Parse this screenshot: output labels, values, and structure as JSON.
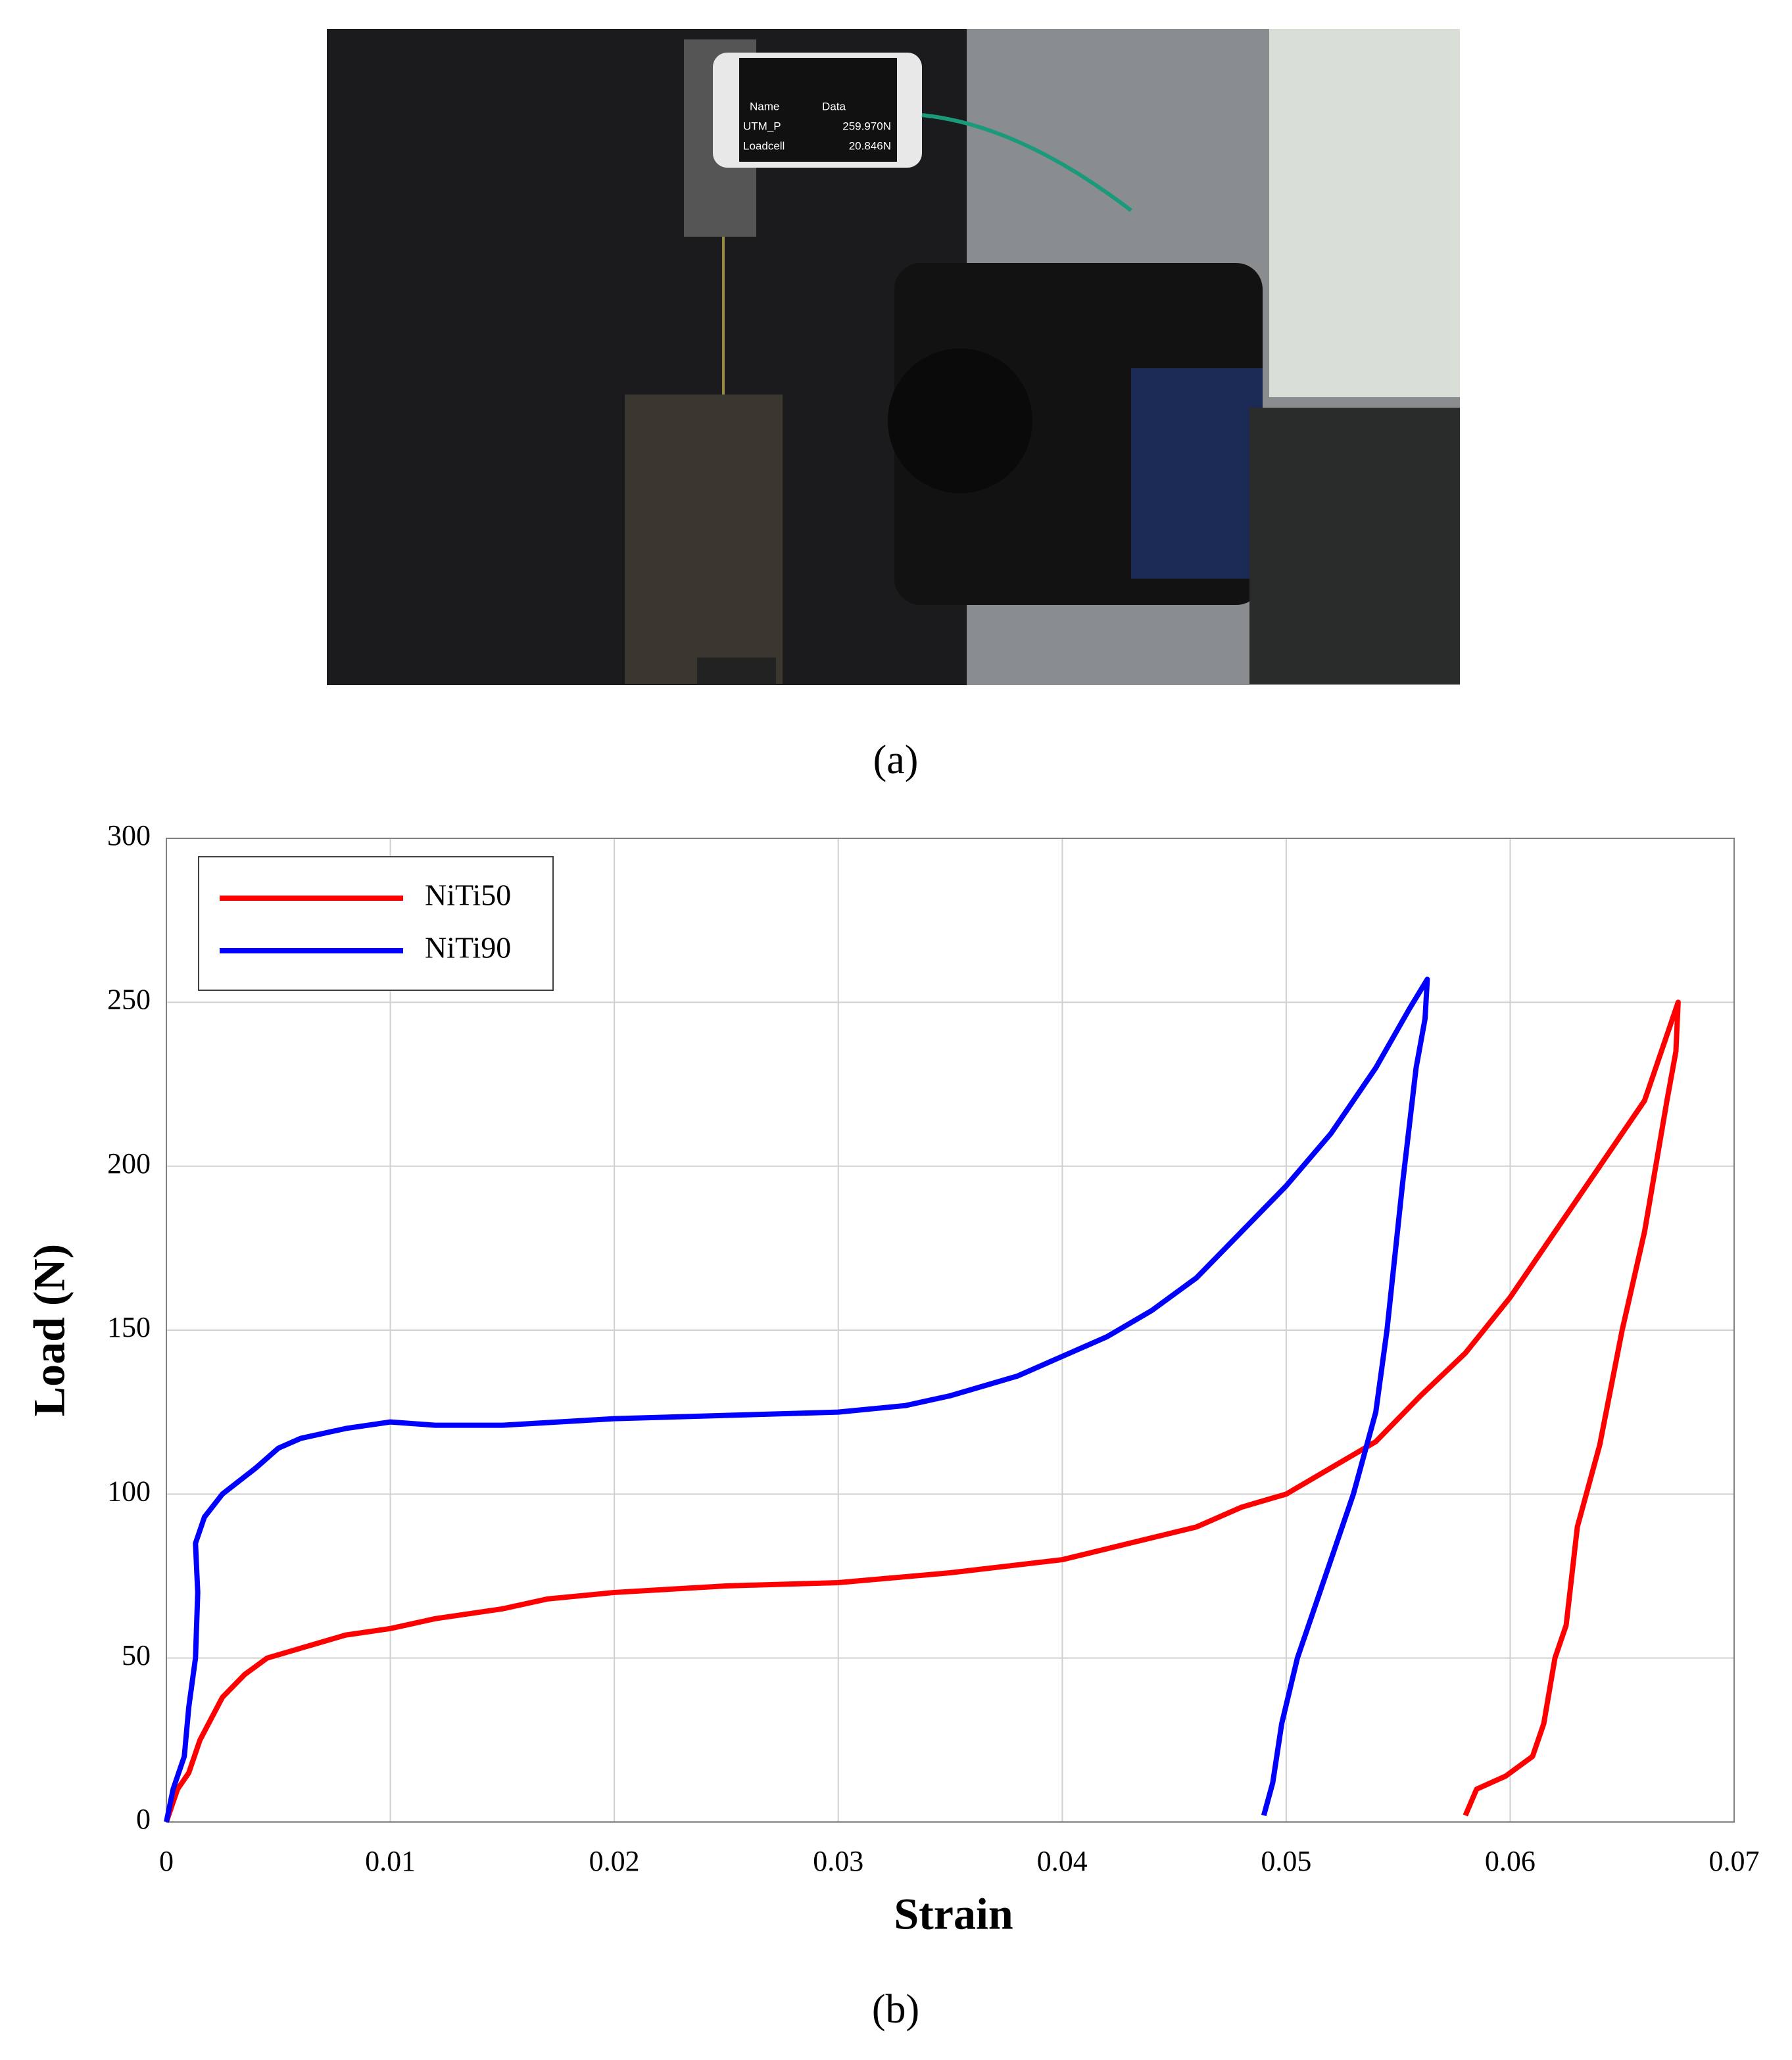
{
  "photo": {
    "screen_header": [
      "Name",
      "Data"
    ],
    "screen_rows": [
      [
        "UTM_P",
        "259.970N"
      ],
      [
        "Loadcell",
        "20.846N"
      ]
    ]
  },
  "captions": [
    "(a)",
    "(b)"
  ],
  "chart_data": {
    "type": "line",
    "x_label": "Strain",
    "y_label": "Load (N)",
    "xlim": [
      0,
      0.07
    ],
    "xticks": [
      0,
      0.01,
      0.02,
      0.03,
      0.04,
      0.05,
      0.06,
      0.07
    ],
    "ylim": [
      0,
      300
    ],
    "yticks": [
      0,
      50,
      100,
      150,
      200,
      250,
      300
    ],
    "grid": true,
    "legend": "upper left",
    "series": [
      {
        "name": "NiTi50",
        "color": "#ff0000",
        "x": [
          0,
          0.0005,
          0.001,
          0.0015,
          0.0025,
          0.0035,
          0.0045,
          0.006,
          0.008,
          0.01,
          0.012,
          0.015,
          0.017,
          0.02,
          0.025,
          0.03,
          0.035,
          0.04,
          0.043,
          0.046,
          0.048,
          0.05,
          0.052,
          0.054,
          0.056,
          0.058,
          0.06,
          0.062,
          0.064,
          0.066,
          0.0675,
          0.0674,
          0.067,
          0.066,
          0.065,
          0.064,
          0.063,
          0.0625,
          0.062,
          0.0615,
          0.061,
          0.0598,
          0.0585,
          0.058
        ],
        "values": [
          0,
          10,
          15,
          25,
          38,
          45,
          50,
          53,
          57,
          59,
          62,
          65,
          68,
          70,
          72,
          73,
          76,
          80,
          85,
          90,
          96,
          100,
          108,
          116,
          130,
          143,
          160,
          180,
          200,
          220,
          250,
          235,
          220,
          180,
          150,
          115,
          90,
          60,
          50,
          30,
          20,
          14,
          10,
          2
        ]
      },
      {
        "name": "NiTi90",
        "color": "#0000ff",
        "x": [
          0,
          0.0003,
          0.0008,
          0.001,
          0.0013,
          0.0014,
          0.0013,
          0.0017,
          0.0025,
          0.004,
          0.005,
          0.006,
          0.008,
          0.01,
          0.012,
          0.015,
          0.02,
          0.025,
          0.03,
          0.033,
          0.035,
          0.038,
          0.04,
          0.042,
          0.044,
          0.046,
          0.048,
          0.05,
          0.052,
          0.054,
          0.0555,
          0.0563,
          0.0562,
          0.0558,
          0.0552,
          0.0545,
          0.054,
          0.053,
          0.0515,
          0.0505,
          0.0498,
          0.0494,
          0.049
        ],
        "values": [
          0,
          10,
          20,
          35,
          50,
          70,
          85,
          93,
          100,
          108,
          114,
          117,
          120,
          122,
          121,
          121,
          123,
          124,
          125,
          127,
          130,
          136,
          142,
          148,
          156,
          166,
          180,
          194,
          210,
          230,
          248,
          257,
          245,
          230,
          195,
          150,
          125,
          100,
          70,
          50,
          30,
          12,
          2
        ]
      }
    ]
  }
}
